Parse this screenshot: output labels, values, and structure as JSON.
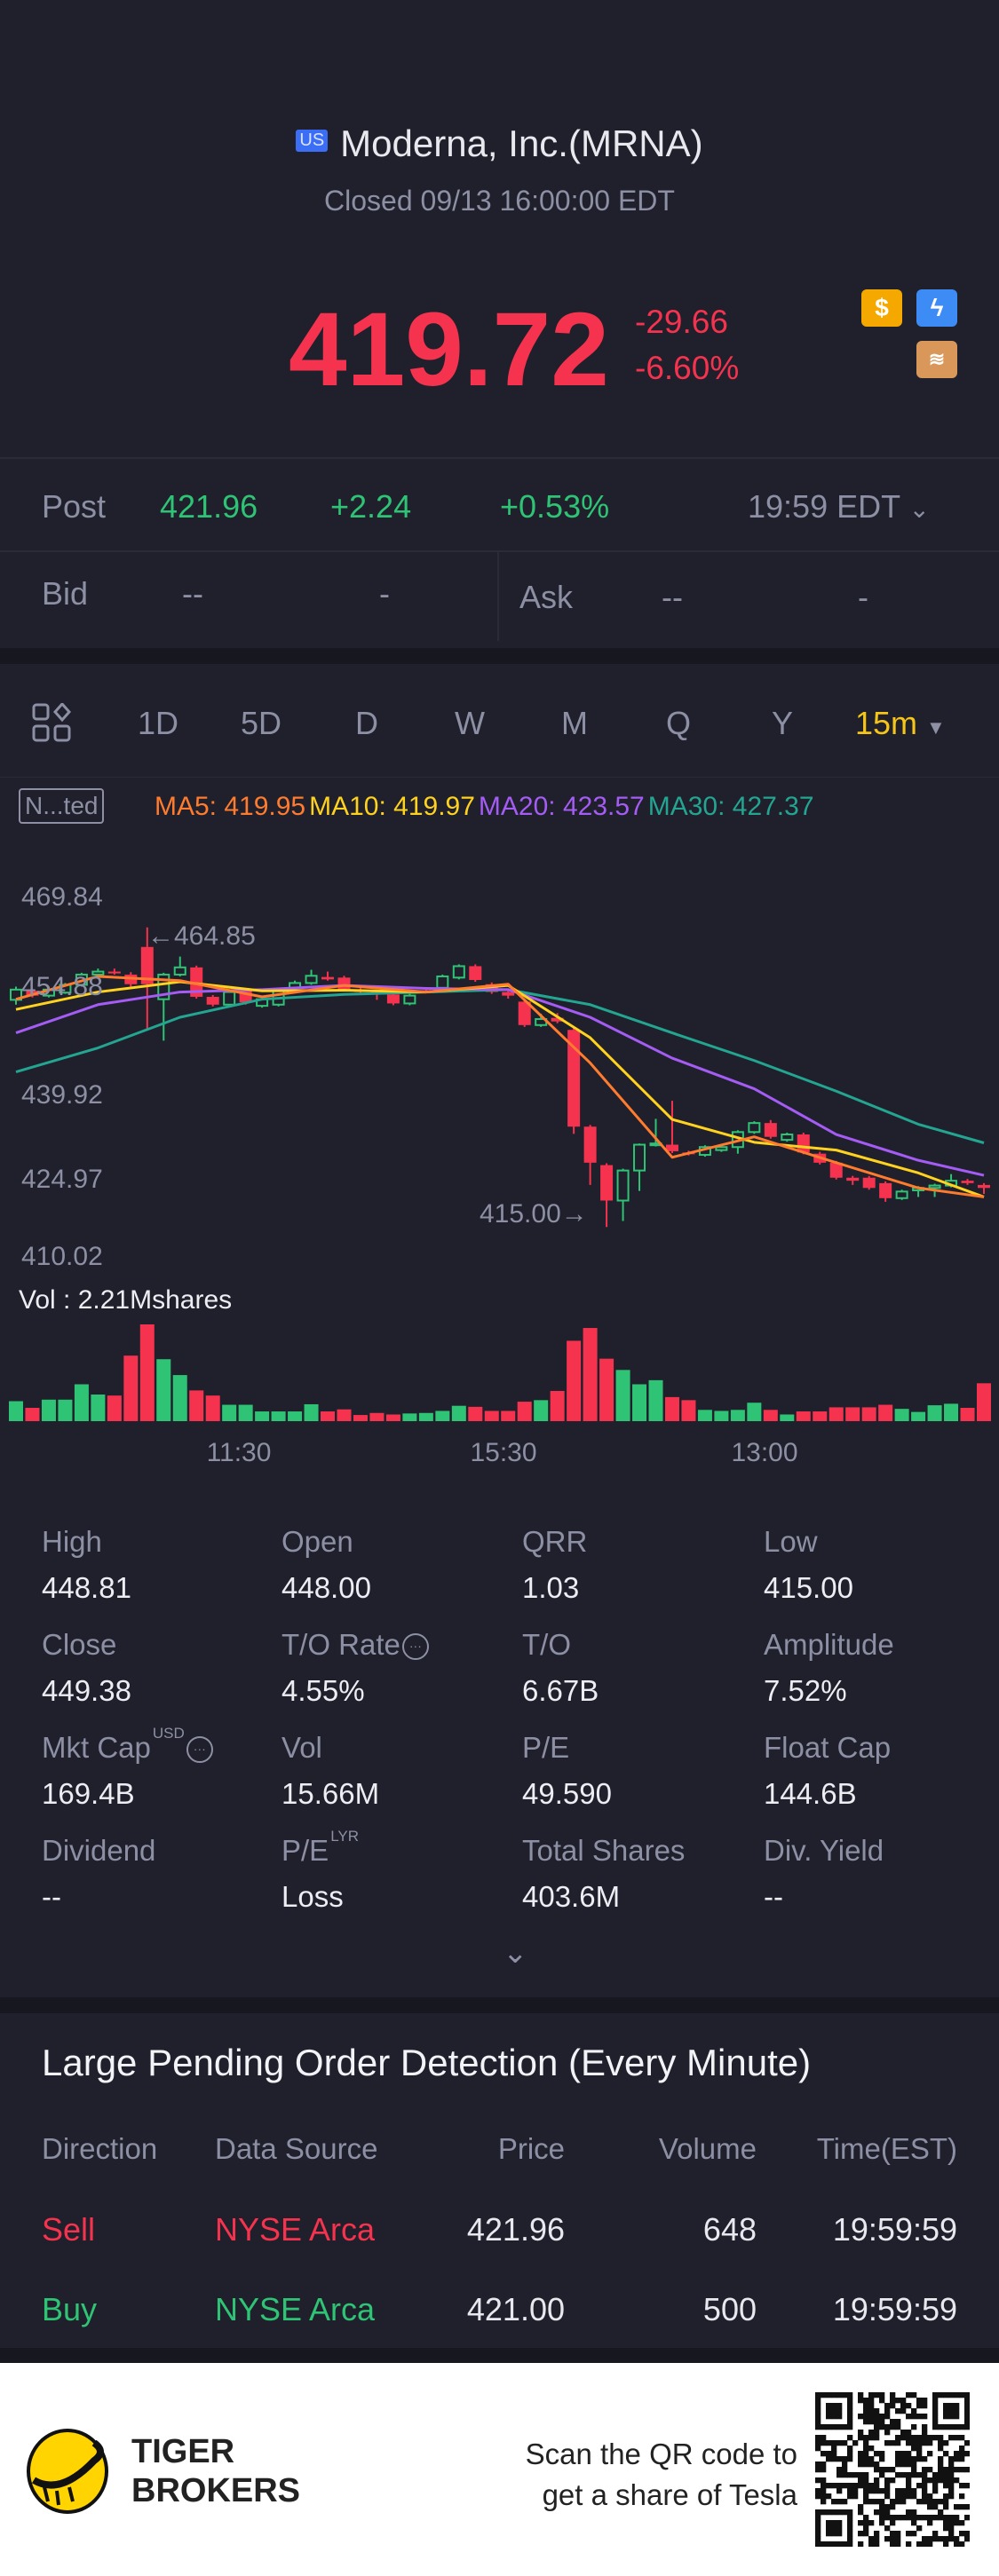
{
  "header": {
    "market_badge": "US",
    "title": "Moderna, Inc.(MRNA)",
    "status": "Closed 09/13 16:00:00 EDT",
    "price": "419.72",
    "change": "-29.66",
    "change_pct": "-6.60%",
    "icons": [
      "dollar-icon",
      "lightning-icon",
      "layers-icon"
    ]
  },
  "post": {
    "label": "Post",
    "price": "421.96",
    "change": "+2.24",
    "change_pct": "+0.53%",
    "time": "19:59 EDT"
  },
  "bid": {
    "label": "Bid",
    "price": "--",
    "size": "-"
  },
  "ask": {
    "label": "Ask",
    "price": "--",
    "size": "-"
  },
  "tabs": [
    "1D",
    "5D",
    "D",
    "W",
    "M",
    "Q",
    "Y"
  ],
  "interval": "15m",
  "chart_legend": {
    "adjust": "N...ted",
    "ma5": "MA5: 419.95",
    "ma10": "MA10: 419.97",
    "ma20": "MA20: 423.57",
    "ma30": "MA30: 427.37"
  },
  "colors": {
    "up": "#2fc475",
    "down": "#f5334f",
    "ma5": "#ff7b2e",
    "ma10": "#ffd21f",
    "ma20": "#a45cf5",
    "ma30": "#23a592",
    "accent": "#f5c518"
  },
  "chart_data": {
    "type": "candlestick",
    "y_ticks": [
      "469.84",
      "454.88",
      "439.92",
      "424.97",
      "410.02"
    ],
    "ylim": [
      410.02,
      469.84
    ],
    "x_ticks": [
      "11:30",
      "15:30",
      "13:00"
    ],
    "high_label": "←464.85",
    "low_label": "415.00→",
    "candles": [
      [
        452.8,
        455,
        452,
        454.5
      ],
      [
        454.3,
        454.6,
        453.2,
        453.5
      ],
      [
        453.5,
        455,
        453.2,
        454.5
      ],
      [
        454,
        455.6,
        453.8,
        455.3
      ],
      [
        455.3,
        457.3,
        455,
        457
      ],
      [
        457,
        458,
        456.7,
        457.5
      ],
      [
        457.5,
        458,
        457,
        457.2
      ],
      [
        457,
        457.4,
        455,
        455.4
      ],
      [
        461.6,
        464.85,
        448,
        455.4
      ],
      [
        452.9,
        457.3,
        446,
        457
      ],
      [
        457,
        460,
        456.7,
        458.2
      ],
      [
        458.2,
        458.5,
        453,
        453.3
      ],
      [
        453.3,
        453.6,
        451.7,
        452
      ],
      [
        452,
        454.4,
        451.7,
        454.1
      ],
      [
        454.4,
        454.7,
        452,
        452.4
      ],
      [
        451.8,
        453.2,
        451.5,
        452.9
      ],
      [
        452,
        454.8,
        451.7,
        454.5
      ],
      [
        454.8,
        456,
        454.5,
        455.6
      ],
      [
        455.6,
        457.8,
        455.3,
        456.8
      ],
      [
        456.6,
        457.5,
        456,
        456.2
      ],
      [
        456.5,
        456.8,
        454.2,
        454.5
      ],
      [
        454.5,
        454.8,
        453.8,
        454.1
      ],
      [
        454.1,
        454.4,
        452.8,
        453.7
      ],
      [
        453.7,
        454,
        451.9,
        452.2
      ],
      [
        452.2,
        453.8,
        451.9,
        453.5
      ],
      [
        454.4,
        454.8,
        454,
        454.1
      ],
      [
        454.8,
        457,
        454.5,
        456.7
      ],
      [
        456.5,
        458.7,
        456.2,
        458.4
      ],
      [
        458.4,
        458.7,
        455.8,
        456.1
      ],
      [
        455.4,
        455.7,
        453.8,
        454.1
      ],
      [
        454.1,
        454.4,
        453,
        453.5
      ],
      [
        452.5,
        452.8,
        448.3,
        448.6
      ],
      [
        448.6,
        450.5,
        448.3,
        449.6
      ],
      [
        449.8,
        450.6,
        448.9,
        449.2
      ],
      [
        447.8,
        448.1,
        430.5,
        431.7
      ],
      [
        431.7,
        432,
        422,
        425.7
      ],
      [
        425.3,
        425.6,
        415,
        419.4
      ],
      [
        419.4,
        424.7,
        416,
        424.4
      ],
      [
        424.4,
        428.9,
        421,
        428.7
      ],
      [
        428.7,
        433,
        428.4,
        428.9
      ],
      [
        428.7,
        436,
        427.3,
        427.6
      ],
      [
        427.4,
        427.7,
        426.9,
        427.2
      ],
      [
        427,
        428.6,
        426.7,
        428.3
      ],
      [
        427.8,
        428.6,
        427.5,
        428.3
      ],
      [
        428.3,
        431.1,
        427.2,
        430.8
      ],
      [
        430.8,
        432.6,
        430.5,
        432.3
      ],
      [
        432.3,
        432.8,
        429.7,
        430
      ],
      [
        429.5,
        430.7,
        429.2,
        430.4
      ],
      [
        430.4,
        430.7,
        427.1,
        427.4
      ],
      [
        427.2,
        427.5,
        425.4,
        425.7
      ],
      [
        425.7,
        426,
        422.9,
        423.2
      ],
      [
        423.2,
        423.5,
        422,
        422.7
      ],
      [
        423.2,
        423.5,
        421.2,
        421.5
      ],
      [
        422.3,
        422.6,
        419.2,
        419.8
      ],
      [
        419.8,
        421.2,
        419.5,
        420.9
      ],
      [
        421.1,
        421.8,
        420,
        421.5
      ],
      [
        421.5,
        422.2,
        420,
        421.9
      ],
      [
        421.9,
        423.8,
        421.6,
        422.7
      ],
      [
        422.7,
        423,
        422,
        422.3
      ],
      [
        422,
        422.3,
        420.5,
        421.5
      ]
    ],
    "ma_indices": [
      0,
      5,
      10,
      15,
      20,
      25,
      30,
      35,
      40,
      45,
      50,
      55,
      59
    ],
    "ma5": [
      452.9,
      456.7,
      456.0,
      453.3,
      455.2,
      454.1,
      455.4,
      442.3,
      426.6,
      430.0,
      425.7,
      421.5,
      420.0
    ],
    "ma10": [
      451.2,
      454.1,
      455.8,
      454.3,
      454.4,
      454.1,
      455.2,
      446.5,
      432.9,
      429.1,
      427.8,
      424.0,
      420.0
    ],
    "ma20": [
      447.3,
      452.0,
      454.1,
      454.5,
      455.2,
      454.7,
      454.5,
      449.9,
      443.1,
      438.0,
      430.4,
      426.1,
      423.6
    ],
    "ma30": [
      440.8,
      444.8,
      449.9,
      452.9,
      453.7,
      454.1,
      454.5,
      452.0,
      447.3,
      442.7,
      437.6,
      432.1,
      429.0
    ],
    "volume_label": "Vol  : 2.21Mshares",
    "volumes_relative": [
      39,
      26,
      42,
      42,
      72,
      52,
      50,
      128,
      189,
      121,
      90,
      60,
      50,
      32,
      32,
      19,
      19,
      19,
      33,
      19,
      23,
      12,
      16,
      13,
      15,
      16,
      20,
      30,
      28,
      20,
      20,
      38,
      41,
      59,
      157,
      182,
      122,
      100,
      72,
      80,
      47,
      41,
      22,
      20,
      22,
      36,
      22,
      13,
      19,
      19,
      27,
      27,
      27,
      32,
      24,
      18,
      31,
      34,
      26,
      74
    ],
    "volume_up": [
      1,
      0,
      1,
      1,
      1,
      1,
      0,
      0,
      0,
      1,
      1,
      0,
      0,
      1,
      1,
      1,
      1,
      1,
      1,
      0,
      0,
      0,
      0,
      0,
      1,
      1,
      1,
      1,
      0,
      0,
      0,
      0,
      1,
      0,
      0,
      0,
      0,
      1,
      1,
      1,
      0,
      0,
      1,
      1,
      1,
      1,
      0,
      1,
      0,
      0,
      0,
      0,
      0,
      0,
      1,
      1,
      1,
      1,
      0,
      0
    ]
  },
  "stats": [
    {
      "label": "High",
      "value": "448.81"
    },
    {
      "label": "Open",
      "value": "448.00"
    },
    {
      "label": "QRR",
      "value": "1.03"
    },
    {
      "label": "Low",
      "value": "415.00"
    },
    {
      "label": "Close",
      "value": "449.38"
    },
    {
      "label": "T/O Rate",
      "value": "4.55%"
    },
    {
      "label": "T/O",
      "value": "6.67B"
    },
    {
      "label": "Amplitude",
      "value": "7.52%"
    },
    {
      "label": "Mkt Cap",
      "value": "169.4B",
      "sup": "USD"
    },
    {
      "label": "Vol",
      "value": "15.66M"
    },
    {
      "label": "P/E",
      "value": "49.590"
    },
    {
      "label": "Float Cap",
      "value": "144.6B"
    },
    {
      "label": "Dividend",
      "value": "--"
    },
    {
      "label": "P/E",
      "value": "Loss",
      "sup": "LYR"
    },
    {
      "label": "Total Shares",
      "value": "403.6M"
    },
    {
      "label": "Div. Yield",
      "value": "--"
    }
  ],
  "orders": {
    "title": "Large Pending Order Detection (Every Minute)",
    "headers": [
      "Direction",
      "Data Source",
      "Price",
      "Volume",
      "Time(EST)"
    ],
    "rows": [
      {
        "direction": "Sell",
        "source": "NYSE Arca",
        "price": "421.96",
        "volume": "648",
        "time": "19:59:59"
      },
      {
        "direction": "Buy",
        "source": "NYSE Arca",
        "price": "421.00",
        "volume": "500",
        "time": "19:59:59"
      }
    ]
  },
  "footer": {
    "brand_line1": "TIGER",
    "brand_line2": "BROKERS",
    "promo_line1": "Scan the QR code to",
    "promo_line2": "get a share of Tesla"
  }
}
